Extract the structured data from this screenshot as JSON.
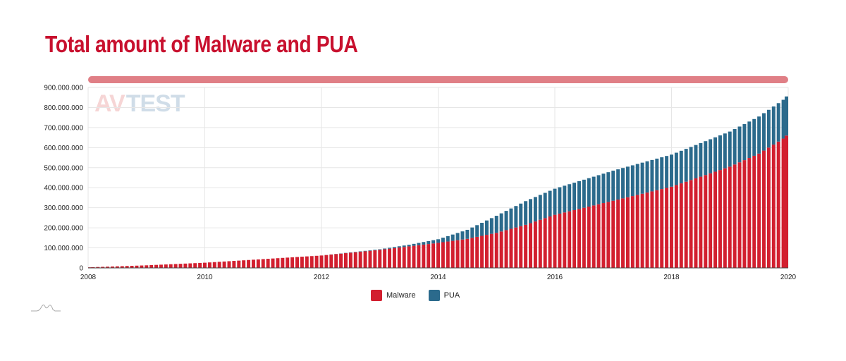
{
  "title": "Total amount of Malware and PUA",
  "watermark": {
    "av": "AV",
    "test": "TEST"
  },
  "colors": {
    "malware": "#d21f2f",
    "pua": "#2b6a8c",
    "title": "#c8102e",
    "scrollbar": "#e07f86"
  },
  "legend": [
    {
      "label": "Malware",
      "color": "#d21f2f"
    },
    {
      "label": "PUA",
      "color": "#2b6a8c"
    }
  ],
  "chart_data": {
    "type": "bar",
    "stacked": true,
    "title": "Total amount of Malware and PUA",
    "xlabel": "",
    "ylabel": "",
    "x_start": 2008,
    "x_end": 2020,
    "ylim": [
      0,
      900000000
    ],
    "y_ticks": [
      0,
      100000000,
      200000000,
      300000000,
      400000000,
      500000000,
      600000000,
      700000000,
      800000000,
      900000000
    ],
    "y_tick_labels": [
      "0",
      "100.000.000",
      "200.000.000",
      "300.000.000",
      "400.000.000",
      "500.000.000",
      "600.000.000",
      "700.000.000",
      "800.000.000",
      "900.000.000"
    ],
    "x_ticks": [
      "2008",
      "2010",
      "2012",
      "2014",
      "2016",
      "2018",
      "2020"
    ],
    "grid": true,
    "legend_position": "bottom-center",
    "series_anchor_note": "approximate monthly cumulative totals; [year, value] anchors",
    "series": [
      {
        "name": "Malware",
        "anchors": [
          [
            2008.0,
            3000000
          ],
          [
            2009.0,
            13000000
          ],
          [
            2010.0,
            26000000
          ],
          [
            2011.0,
            44000000
          ],
          [
            2012.0,
            62000000
          ],
          [
            2013.0,
            90000000
          ],
          [
            2014.0,
            125000000
          ],
          [
            2014.5,
            145000000
          ],
          [
            2015.0,
            175000000
          ],
          [
            2015.5,
            215000000
          ],
          [
            2016.0,
            265000000
          ],
          [
            2017.0,
            335000000
          ],
          [
            2018.0,
            405000000
          ],
          [
            2019.0,
            505000000
          ],
          [
            2019.5,
            570000000
          ],
          [
            2020.0,
            660000000
          ]
        ]
      },
      {
        "name": "PUA",
        "anchors": [
          [
            2008.0,
            0
          ],
          [
            2012.0,
            0
          ],
          [
            2013.0,
            3000000
          ],
          [
            2013.5,
            8000000
          ],
          [
            2014.0,
            18000000
          ],
          [
            2014.5,
            45000000
          ],
          [
            2015.0,
            85000000
          ],
          [
            2015.5,
            118000000
          ],
          [
            2016.0,
            130000000
          ],
          [
            2017.0,
            150000000
          ],
          [
            2018.0,
            160000000
          ],
          [
            2019.0,
            175000000
          ],
          [
            2020.0,
            195000000
          ]
        ]
      }
    ]
  }
}
